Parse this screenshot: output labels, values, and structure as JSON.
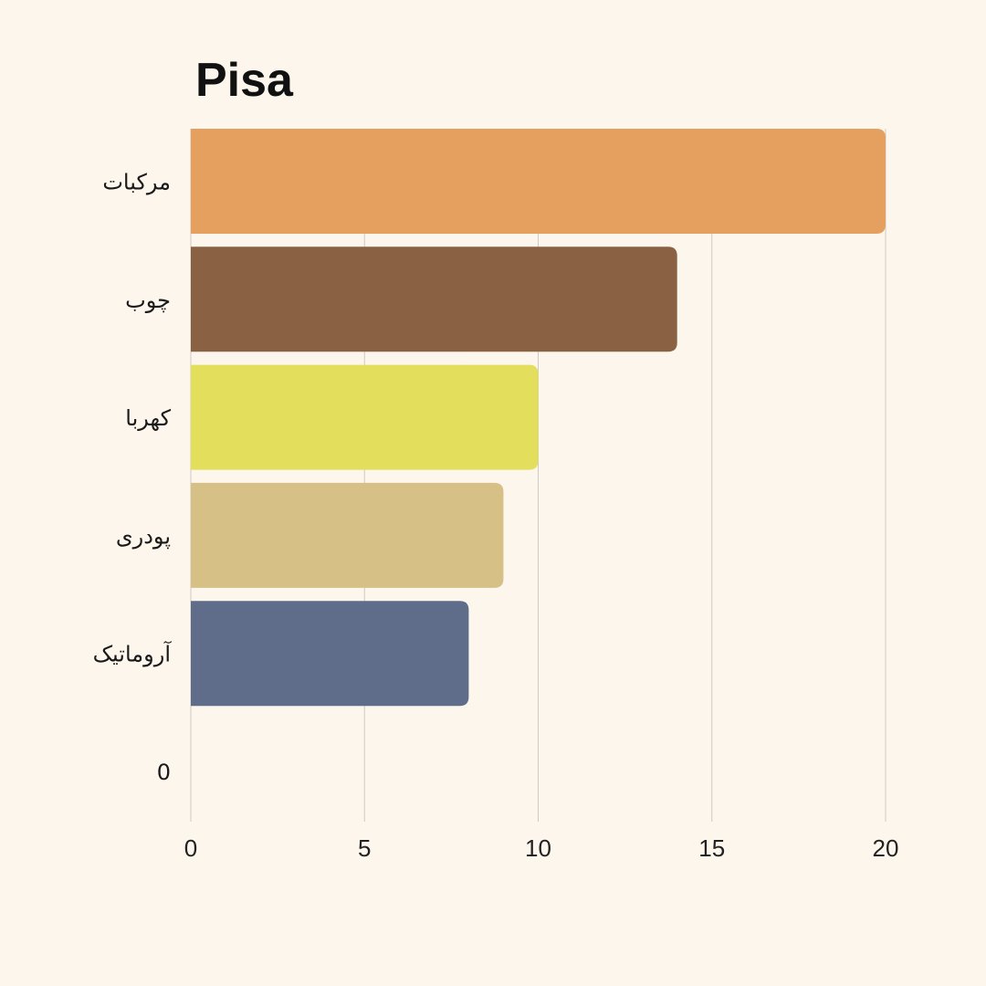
{
  "chart_data": {
    "type": "bar",
    "orientation": "horizontal",
    "title": "Pisa",
    "categories": [
      "مرکبات",
      "چوب",
      "کهربا",
      "پودری",
      "آروماتیک",
      "0"
    ],
    "values": [
      20,
      14,
      10,
      9,
      8,
      0
    ],
    "colors": [
      "#e59f5e",
      "#8a6142",
      "#e3df5c",
      "#d6c085",
      "#5f6d8a",
      "#fdf6ed"
    ],
    "xlim": [
      0,
      20
    ],
    "xticks": [
      0,
      5,
      10,
      15,
      20
    ],
    "grid": "vertical",
    "xlabel": "",
    "ylabel": ""
  }
}
